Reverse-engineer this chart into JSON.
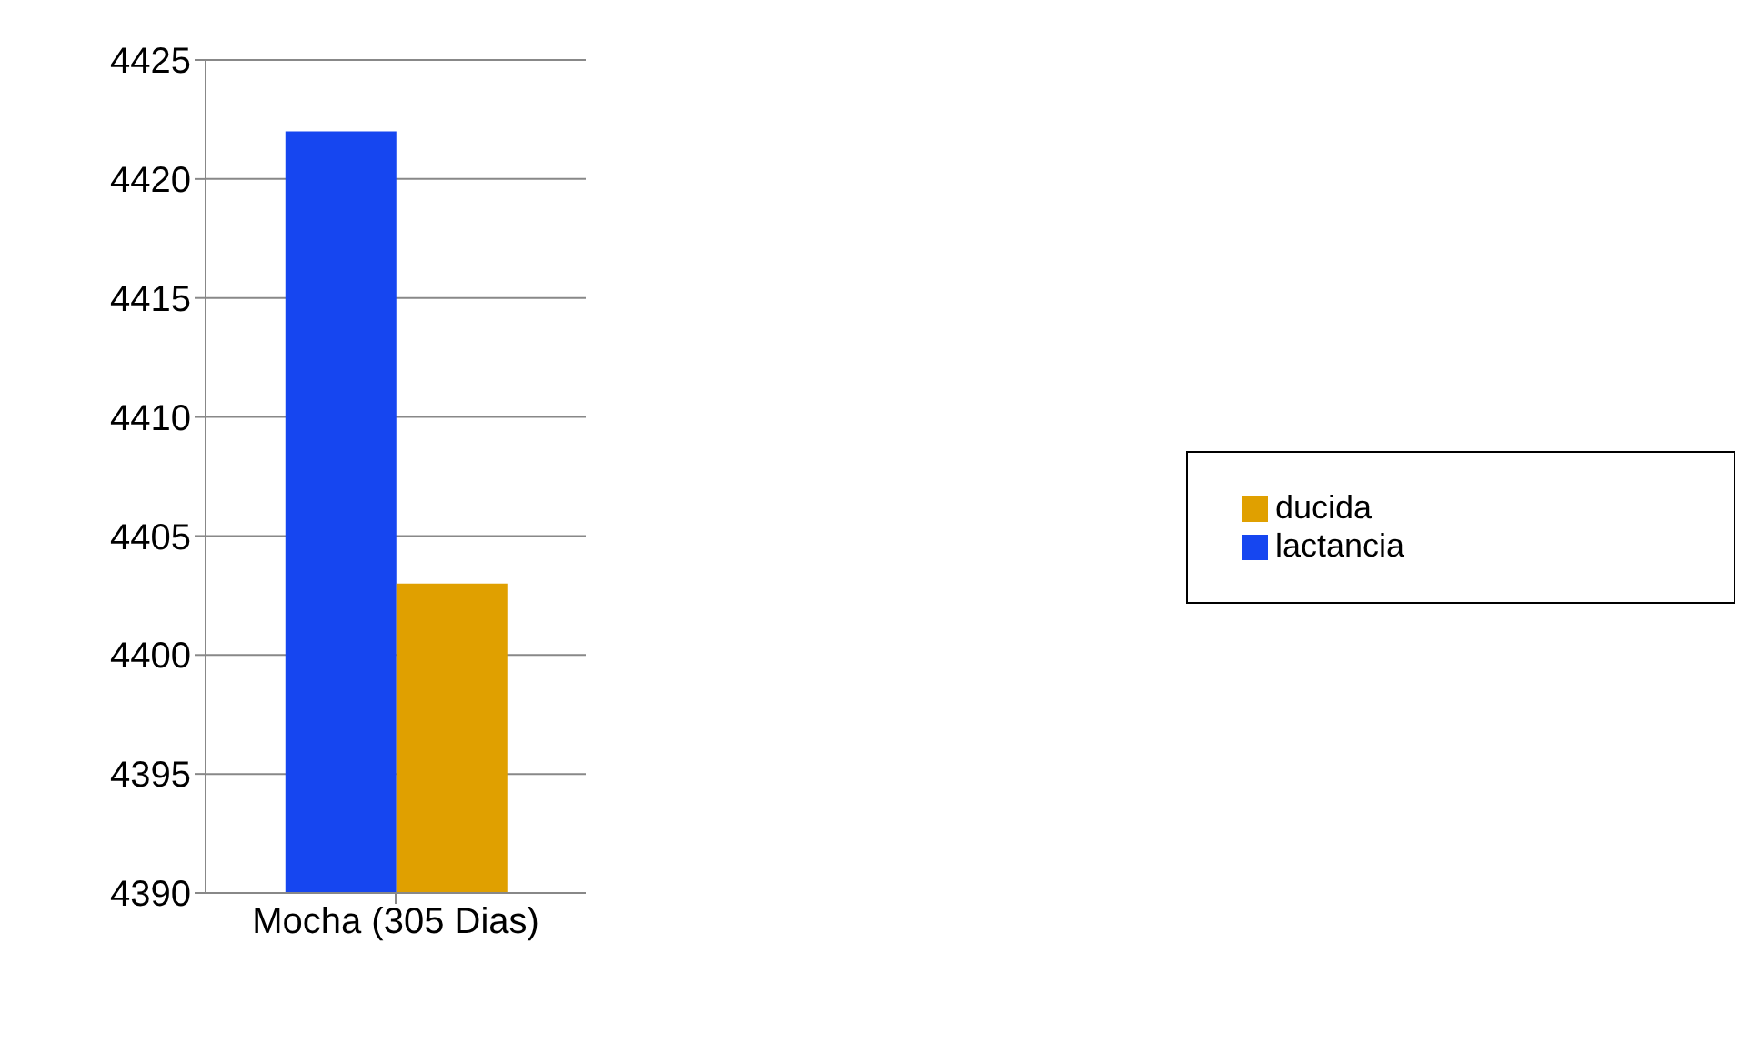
{
  "chart_data": {
    "type": "bar",
    "categories": [
      "Mocha (305 Dias)"
    ],
    "series": [
      {
        "name": "lactancia",
        "color": "#1646f0",
        "values": [
          4422
        ]
      },
      {
        "name": "ducida",
        "color": "#e0a000",
        "values": [
          4403
        ]
      }
    ],
    "ylim": [
      4390,
      4425
    ],
    "yticks": [
      4390,
      4395,
      4400,
      4405,
      4410,
      4415,
      4420,
      4425
    ],
    "grid": "y",
    "legend": "right"
  }
}
